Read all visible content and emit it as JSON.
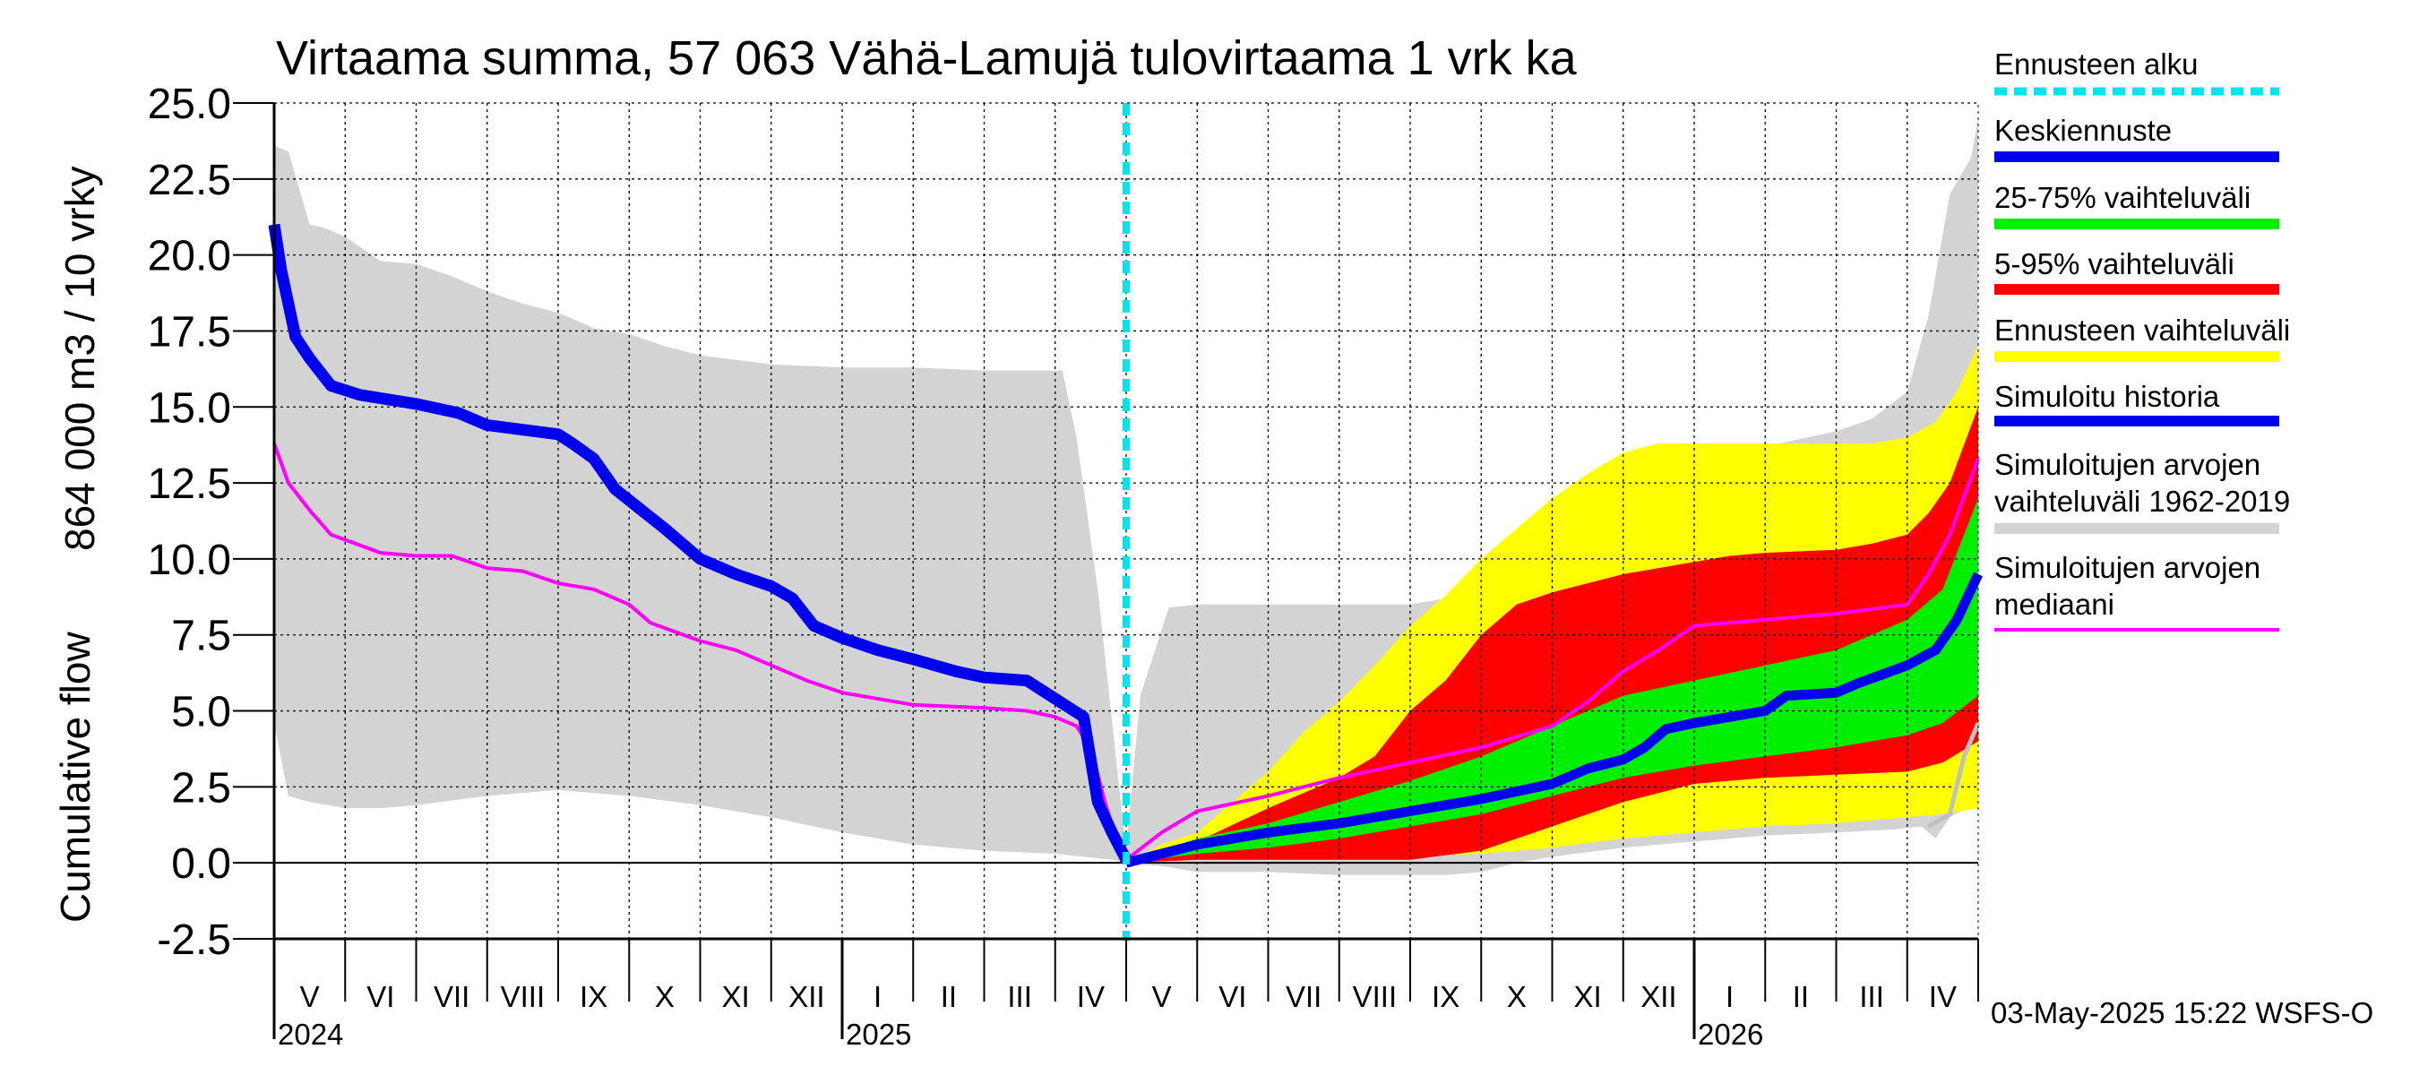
{
  "chart_data": {
    "type": "area",
    "title": "Virtaama summa, 57 063 Vähä-Lamujä tulovirtaama 1 vrk ka",
    "ylabel_top": "864 000 m3 / 10 vrky",
    "ylabel_bottom": "Cumulative flow",
    "ylim": [
      -2.5,
      25.0
    ],
    "yticks": [
      "-2.5",
      "0.0",
      "2.5",
      "5.0",
      "7.5",
      "10.0",
      "12.5",
      "15.0",
      "17.5",
      "20.0",
      "22.5",
      "25.0"
    ],
    "x_range_months": [
      0,
      24
    ],
    "months": [
      "V",
      "VI",
      "VII",
      "VIII",
      "IX",
      "X",
      "XI",
      "XII",
      "I",
      "II",
      "III",
      "IV",
      "V",
      "VI",
      "VII",
      "VIII",
      "IX",
      "X",
      "XI",
      "XII",
      "I",
      "II",
      "III",
      "IV"
    ],
    "years": [
      {
        "label": "2024",
        "x": 0
      },
      {
        "label": "2025",
        "x": 8
      },
      {
        "label": "2026",
        "x": 20
      }
    ],
    "forecast_start_x": 12,
    "timestamp": "03-May-2025 15:22 WSFS-O",
    "colors": {
      "hist_range": "#d3d3d3",
      "forecast_range": "#ffff00",
      "p5_95": "#ff0000",
      "p25_75": "#00ee00",
      "mean_forecast": "#0000ee",
      "simulated_history": "#0000ee",
      "median": "#ff00ff",
      "forecast_start": "#00e5ee",
      "gray_line": "#c0c0c0"
    },
    "legend": [
      {
        "label": "Ennusteen alku",
        "color": "#00e5ee",
        "style": "dashed"
      },
      {
        "label": "Keskiennuste",
        "color": "#0000ee",
        "style": "solid"
      },
      {
        "label": "25-75% vaihteluväli",
        "color": "#00ee00",
        "style": "solid"
      },
      {
        "label": "5-95% vaihteluväli",
        "color": "#ff0000",
        "style": "solid"
      },
      {
        "label": "Ennusteen vaihteluväli",
        "color": "#ffff00",
        "style": "solid"
      },
      {
        "label": "Simuloitu historia",
        "color": "#0000ee",
        "style": "solid"
      },
      {
        "label": "Simuloitujen arvojen vaihteluväli 1962-2019",
        "color": "#d3d3d3",
        "style": "solid"
      },
      {
        "label": "Simuloitujen arvojen mediaani",
        "color": "#ff00ff",
        "style": "solid"
      }
    ],
    "series": {
      "hist_upper": [
        [
          0,
          23.6
        ],
        [
          0.2,
          23.4
        ],
        [
          0.5,
          21.0
        ],
        [
          0.7,
          20.9
        ],
        [
          1.0,
          20.6
        ],
        [
          1.5,
          19.8
        ],
        [
          2.0,
          19.7
        ],
        [
          2.5,
          19.3
        ],
        [
          3.0,
          18.8
        ],
        [
          3.5,
          18.4
        ],
        [
          4.0,
          18.1
        ],
        [
          4.5,
          17.6
        ],
        [
          5.0,
          17.4
        ],
        [
          5.5,
          17.0
        ],
        [
          6.0,
          16.7
        ],
        [
          7.0,
          16.4
        ],
        [
          8.0,
          16.3
        ],
        [
          9.0,
          16.3
        ],
        [
          10.0,
          16.2
        ],
        [
          11.1,
          16.2
        ],
        [
          11.3,
          14.0
        ],
        [
          11.6,
          9.0
        ],
        [
          11.9,
          2.5
        ],
        [
          12.0,
          0.5
        ],
        [
          12.2,
          5.5
        ],
        [
          12.6,
          8.4
        ],
        [
          13.0,
          8.5
        ],
        [
          14.0,
          8.5
        ],
        [
          15.0,
          8.5
        ],
        [
          16.0,
          8.5
        ],
        [
          16.5,
          8.7
        ],
        [
          17.0,
          9.3
        ],
        [
          17.5,
          10.2
        ],
        [
          18.0,
          11.0
        ],
        [
          19.0,
          12.2
        ],
        [
          20.0,
          13.0
        ],
        [
          21.0,
          13.7
        ],
        [
          22.0,
          14.2
        ],
        [
          22.5,
          14.6
        ],
        [
          23.0,
          15.5
        ],
        [
          23.3,
          18.0
        ],
        [
          23.6,
          22.0
        ],
        [
          23.9,
          23.2
        ],
        [
          24.0,
          24.5
        ]
      ],
      "hist_lower": [
        [
          0,
          4.6
        ],
        [
          0.2,
          2.2
        ],
        [
          0.5,
          2.0
        ],
        [
          1.0,
          1.8
        ],
        [
          1.5,
          1.8
        ],
        [
          2.0,
          1.9
        ],
        [
          3.0,
          2.2
        ],
        [
          4.0,
          2.4
        ],
        [
          5.0,
          2.2
        ],
        [
          6.0,
          1.9
        ],
        [
          7.0,
          1.5
        ],
        [
          8.0,
          1.0
        ],
        [
          9.0,
          0.6
        ],
        [
          10.0,
          0.4
        ],
        [
          11.0,
          0.3
        ],
        [
          11.8,
          0.1
        ],
        [
          12.0,
          0.0
        ],
        [
          12.5,
          -0.1
        ],
        [
          13.0,
          -0.3
        ],
        [
          14.0,
          -0.3
        ],
        [
          15.0,
          -0.4
        ],
        [
          16.0,
          -0.4
        ],
        [
          16.5,
          -0.4
        ],
        [
          17.0,
          -0.3
        ],
        [
          17.5,
          0.0
        ],
        [
          18.0,
          0.2
        ],
        [
          19.0,
          0.5
        ],
        [
          20.0,
          0.7
        ],
        [
          21.0,
          0.9
        ],
        [
          22.0,
          1.0
        ],
        [
          22.8,
          1.1
        ],
        [
          23.2,
          1.2
        ],
        [
          23.4,
          0.8
        ],
        [
          23.6,
          1.5
        ],
        [
          24.0,
          2.0
        ]
      ],
      "forecast_upper": [
        [
          12.0,
          0.0
        ],
        [
          12.5,
          0.6
        ],
        [
          13.0,
          1.0
        ],
        [
          13.5,
          2.0
        ],
        [
          14.0,
          3.0
        ],
        [
          14.5,
          4.3
        ],
        [
          15.0,
          5.3
        ],
        [
          15.5,
          6.5
        ],
        [
          16.0,
          7.8
        ],
        [
          16.5,
          8.8
        ],
        [
          17.0,
          10.0
        ],
        [
          17.5,
          11.0
        ],
        [
          18.0,
          12.0
        ],
        [
          18.5,
          12.8
        ],
        [
          19.0,
          13.5
        ],
        [
          19.5,
          13.8
        ],
        [
          20.0,
          13.8
        ],
        [
          21.0,
          13.8
        ],
        [
          22.0,
          13.8
        ],
        [
          22.5,
          13.8
        ],
        [
          23.0,
          14.0
        ],
        [
          23.4,
          14.5
        ],
        [
          23.7,
          15.5
        ],
        [
          24.0,
          17.0
        ]
      ],
      "forecast_lower": [
        [
          12.0,
          0.0
        ],
        [
          13.0,
          0.1
        ],
        [
          14.0,
          0.1
        ],
        [
          15.0,
          0.1
        ],
        [
          16.0,
          0.2
        ],
        [
          17.0,
          0.3
        ],
        [
          18.0,
          0.5
        ],
        [
          19.0,
          0.8
        ],
        [
          20.0,
          1.0
        ],
        [
          21.0,
          1.2
        ],
        [
          22.0,
          1.3
        ],
        [
          23.0,
          1.5
        ],
        [
          23.5,
          1.6
        ],
        [
          24.0,
          1.8
        ]
      ],
      "p5_95_upper": [
        [
          12.0,
          0.0
        ],
        [
          13.0,
          0.7
        ],
        [
          14.0,
          1.8
        ],
        [
          15.0,
          2.8
        ],
        [
          15.5,
          3.5
        ],
        [
          16.0,
          5.0
        ],
        [
          16.5,
          6.0
        ],
        [
          17.0,
          7.5
        ],
        [
          17.5,
          8.5
        ],
        [
          18.0,
          8.9
        ],
        [
          18.5,
          9.2
        ],
        [
          19.0,
          9.5
        ],
        [
          19.5,
          9.7
        ],
        [
          20.0,
          9.9
        ],
        [
          20.5,
          10.1
        ],
        [
          21.0,
          10.2
        ],
        [
          22.0,
          10.3
        ],
        [
          22.5,
          10.5
        ],
        [
          23.0,
          10.8
        ],
        [
          23.3,
          11.5
        ],
        [
          23.6,
          12.5
        ],
        [
          24.0,
          15.0
        ]
      ],
      "p5_95_lower": [
        [
          12.0,
          0.0
        ],
        [
          13.0,
          0.1
        ],
        [
          14.0,
          0.1
        ],
        [
          15.0,
          0.1
        ],
        [
          16.0,
          0.1
        ],
        [
          17.0,
          0.4
        ],
        [
          18.0,
          1.2
        ],
        [
          19.0,
          2.0
        ],
        [
          20.0,
          2.6
        ],
        [
          21.0,
          2.8
        ],
        [
          22.0,
          2.9
        ],
        [
          23.0,
          3.0
        ],
        [
          23.5,
          3.3
        ],
        [
          24.0,
          4.0
        ]
      ],
      "p25_75_upper": [
        [
          12.0,
          0.0
        ],
        [
          13.0,
          0.8
        ],
        [
          14.0,
          1.3
        ],
        [
          15.0,
          2.0
        ],
        [
          16.0,
          2.7
        ],
        [
          17.0,
          3.5
        ],
        [
          18.0,
          4.5
        ],
        [
          19.0,
          5.5
        ],
        [
          20.0,
          6.0
        ],
        [
          21.0,
          6.5
        ],
        [
          22.0,
          7.0
        ],
        [
          23.0,
          8.0
        ],
        [
          23.5,
          9.0
        ],
        [
          24.0,
          12.0
        ]
      ],
      "p25_75_lower": [
        [
          12.0,
          0.0
        ],
        [
          13.0,
          0.3
        ],
        [
          14.0,
          0.5
        ],
        [
          15.0,
          0.8
        ],
        [
          16.0,
          1.2
        ],
        [
          17.0,
          1.6
        ],
        [
          18.0,
          2.2
        ],
        [
          19.0,
          2.8
        ],
        [
          20.0,
          3.2
        ],
        [
          21.0,
          3.5
        ],
        [
          22.0,
          3.8
        ],
        [
          23.0,
          4.2
        ],
        [
          23.5,
          4.6
        ],
        [
          24.0,
          5.5
        ]
      ],
      "simulated_history": [
        [
          0,
          21.0
        ],
        [
          0.1,
          19.5
        ],
        [
          0.3,
          17.3
        ],
        [
          0.5,
          16.6
        ],
        [
          0.8,
          15.7
        ],
        [
          1.2,
          15.4
        ],
        [
          2.0,
          15.1
        ],
        [
          2.6,
          14.8
        ],
        [
          3.0,
          14.4
        ],
        [
          4.0,
          14.1
        ],
        [
          4.2,
          13.8
        ],
        [
          4.5,
          13.3
        ],
        [
          4.8,
          12.3
        ],
        [
          5.5,
          11.0
        ],
        [
          6.0,
          10.0
        ],
        [
          6.5,
          9.5
        ],
        [
          7.0,
          9.1
        ],
        [
          7.3,
          8.7
        ],
        [
          7.6,
          7.8
        ],
        [
          8.0,
          7.4
        ],
        [
          8.5,
          7.0
        ],
        [
          9.0,
          6.7
        ],
        [
          9.6,
          6.3
        ],
        [
          10.0,
          6.1
        ],
        [
          10.6,
          6.0
        ],
        [
          11.0,
          5.4
        ],
        [
          11.4,
          4.8
        ],
        [
          11.6,
          2.0
        ],
        [
          11.8,
          1.0
        ],
        [
          12.0,
          0.1
        ]
      ],
      "mean_forecast": [
        [
          12.0,
          0.0
        ],
        [
          13.0,
          0.6
        ],
        [
          14.0,
          1.0
        ],
        [
          15.0,
          1.3
        ],
        [
          16.0,
          1.7
        ],
        [
          17.0,
          2.1
        ],
        [
          18.0,
          2.6
        ],
        [
          18.5,
          3.1
        ],
        [
          19.0,
          3.4
        ],
        [
          19.3,
          3.8
        ],
        [
          19.6,
          4.4
        ],
        [
          20.0,
          4.6
        ],
        [
          21.0,
          5.0
        ],
        [
          21.3,
          5.5
        ],
        [
          22.0,
          5.6
        ],
        [
          22.3,
          5.9
        ],
        [
          23.0,
          6.5
        ],
        [
          23.4,
          7.0
        ],
        [
          23.7,
          8.0
        ],
        [
          24.0,
          9.5
        ]
      ],
      "median": [
        [
          0,
          13.8
        ],
        [
          0.2,
          12.5
        ],
        [
          0.5,
          11.6
        ],
        [
          0.8,
          10.8
        ],
        [
          1.5,
          10.2
        ],
        [
          2.0,
          10.1
        ],
        [
          2.5,
          10.1
        ],
        [
          3.0,
          9.7
        ],
        [
          3.5,
          9.6
        ],
        [
          4.0,
          9.2
        ],
        [
          4.5,
          9.0
        ],
        [
          5.0,
          8.5
        ],
        [
          5.3,
          7.9
        ],
        [
          6.0,
          7.3
        ],
        [
          6.5,
          7.0
        ],
        [
          7.0,
          6.5
        ],
        [
          7.5,
          6.0
        ],
        [
          8.0,
          5.6
        ],
        [
          9.0,
          5.2
        ],
        [
          10.0,
          5.1
        ],
        [
          10.6,
          5.0
        ],
        [
          11.0,
          4.8
        ],
        [
          11.3,
          4.5
        ],
        [
          11.5,
          3.8
        ],
        [
          11.7,
          2.0
        ],
        [
          11.9,
          0.5
        ],
        [
          12.0,
          0.1
        ],
        [
          12.5,
          1.0
        ],
        [
          13.0,
          1.7
        ],
        [
          14.0,
          2.2
        ],
        [
          15.0,
          2.8
        ],
        [
          16.0,
          3.3
        ],
        [
          17.0,
          3.8
        ],
        [
          18.0,
          4.5
        ],
        [
          18.5,
          5.3
        ],
        [
          19.0,
          6.3
        ],
        [
          19.5,
          7.0
        ],
        [
          20.0,
          7.8
        ],
        [
          21.0,
          8.0
        ],
        [
          22.0,
          8.2
        ],
        [
          23.0,
          8.5
        ],
        [
          23.3,
          9.5
        ],
        [
          23.6,
          10.8
        ],
        [
          24.0,
          13.3
        ]
      ],
      "gray_line": [
        [
          23.3,
          1.2
        ],
        [
          23.6,
          1.6
        ],
        [
          23.8,
          3.5
        ],
        [
          24.0,
          4.6
        ]
      ]
    }
  }
}
